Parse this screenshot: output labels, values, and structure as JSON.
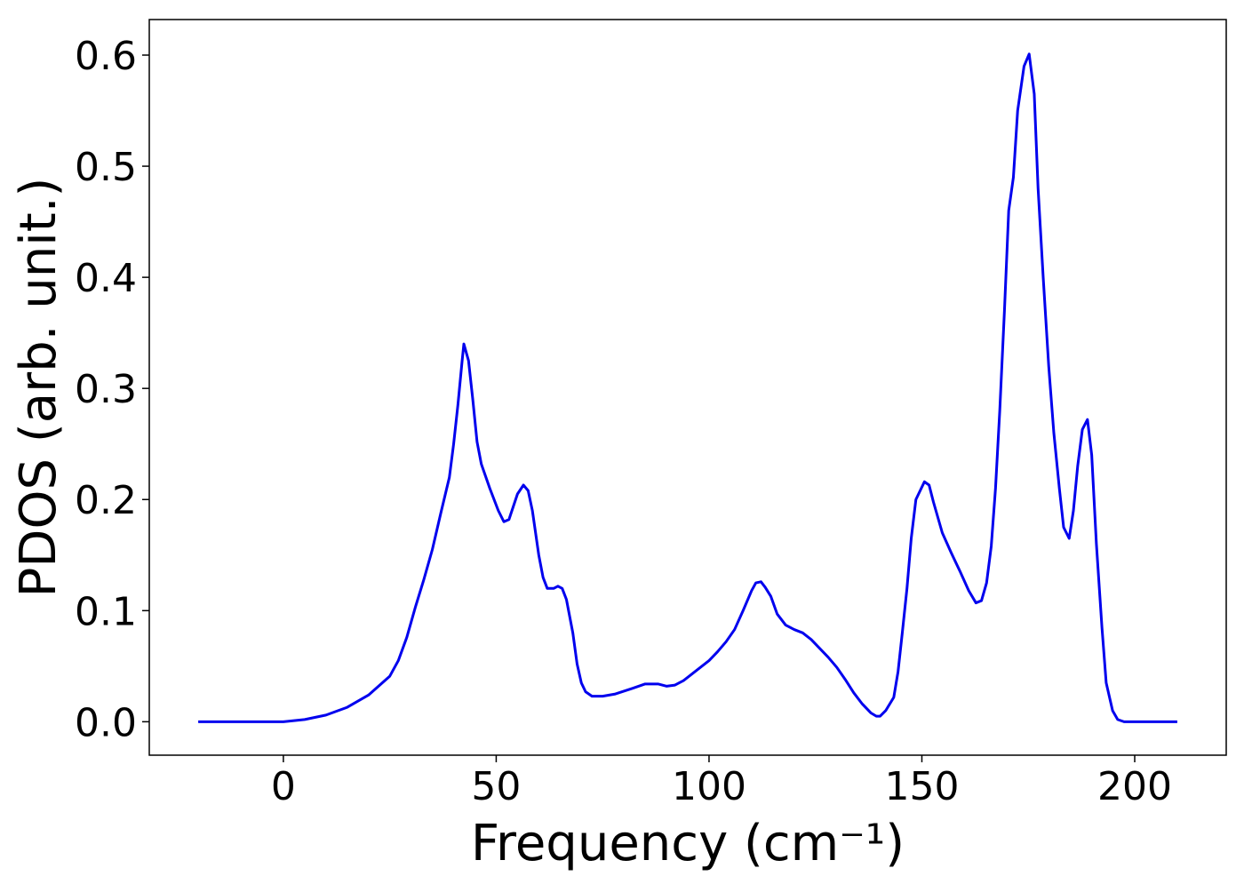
{
  "chart_data": {
    "type": "line",
    "xlabel": "Frequency (cm⁻¹)",
    "ylabel": "PDOS (arb. unit.)",
    "series": [
      {
        "color": "#0000ee",
        "x": [
          -20,
          -10,
          0,
          5,
          10,
          15,
          20,
          25,
          27,
          29,
          31,
          33,
          35,
          37,
          39,
          40,
          41,
          42,
          42.4,
          43.5,
          44.5,
          45.5,
          46.5,
          48.5,
          50.5,
          51.8,
          53,
          55,
          56.4,
          57.5,
          58.5,
          60,
          61,
          62,
          63.5,
          64.5,
          65.5,
          66.5,
          68,
          69,
          70,
          71,
          72.5,
          75,
          78,
          82,
          85,
          88,
          90,
          92,
          94,
          96,
          98,
          100,
          102,
          104,
          106,
          108,
          110,
          111,
          112.2,
          113.2,
          114.5,
          116,
          118,
          120,
          122,
          124,
          126,
          128,
          130,
          132,
          134,
          136,
          138,
          139.3,
          140.2,
          141.5,
          143.4,
          144.4,
          145.4,
          146.5,
          147.5,
          148.6,
          150.6,
          151.7,
          152.7,
          154.8,
          156.9,
          159,
          161,
          162.7,
          164,
          165.2,
          166.3,
          167.3,
          168.3,
          169.4,
          170.4,
          171.5,
          172.5,
          174,
          175.2,
          176.4,
          177.3,
          178.5,
          179.8,
          181,
          182.3,
          183.3,
          184.6,
          185.6,
          186.6,
          187.7,
          188.9,
          189.9,
          191,
          192.3,
          193.3,
          194.8,
          196,
          197.5,
          200,
          210
        ],
        "values": [
          0,
          0,
          0,
          0.002,
          0.006,
          0.013,
          0.024,
          0.041,
          0.055,
          0.076,
          0.103,
          0.128,
          0.155,
          0.188,
          0.22,
          0.25,
          0.285,
          0.325,
          0.34,
          0.325,
          0.29,
          0.252,
          0.232,
          0.21,
          0.19,
          0.18,
          0.182,
          0.205,
          0.213,
          0.208,
          0.19,
          0.15,
          0.13,
          0.12,
          0.12,
          0.122,
          0.12,
          0.11,
          0.08,
          0.052,
          0.035,
          0.027,
          0.023,
          0.023,
          0.025,
          0.03,
          0.034,
          0.034,
          0.032,
          0.033,
          0.037,
          0.043,
          0.049,
          0.055,
          0.063,
          0.072,
          0.083,
          0.1,
          0.118,
          0.125,
          0.126,
          0.121,
          0.113,
          0.097,
          0.087,
          0.083,
          0.08,
          0.074,
          0.066,
          0.058,
          0.049,
          0.038,
          0.026,
          0.016,
          0.008,
          0.005,
          0.005,
          0.01,
          0.022,
          0.045,
          0.08,
          0.12,
          0.165,
          0.2,
          0.216,
          0.213,
          0.198,
          0.17,
          0.152,
          0.135,
          0.118,
          0.107,
          0.109,
          0.125,
          0.158,
          0.21,
          0.28,
          0.37,
          0.46,
          0.49,
          0.55,
          0.59,
          0.601,
          0.565,
          0.48,
          0.4,
          0.32,
          0.26,
          0.21,
          0.175,
          0.165,
          0.19,
          0.23,
          0.263,
          0.272,
          0.24,
          0.16,
          0.085,
          0.035,
          0.01,
          0.002,
          0,
          0,
          0
        ]
      }
    ],
    "xlim": [
      -31.5,
      221.5
    ],
    "xticks": [
      0,
      50,
      100,
      150,
      200
    ],
    "ylim": [
      -0.0301,
      0.632
    ],
    "yticks": [
      {
        "value": 0,
        "label": "0.0"
      },
      0.1,
      0.2,
      0.3,
      0.4,
      0.5,
      0.6
    ],
    "grid": false
  }
}
